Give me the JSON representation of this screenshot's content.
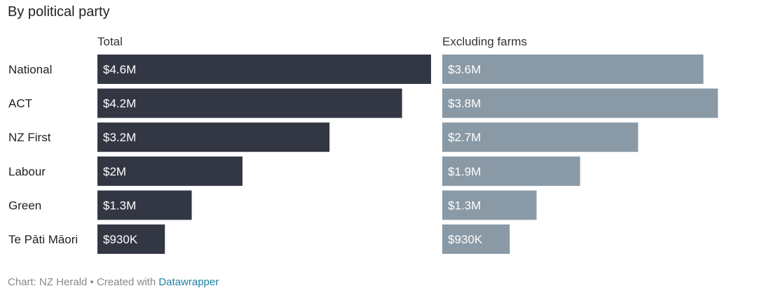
{
  "title": "By political party",
  "footer": {
    "source": "Chart: NZ Herald",
    "separator": " • ",
    "created": "Created with ",
    "link": "Datawrapper"
  },
  "colors": {
    "total": "#333743",
    "excluding": "#8999a5",
    "bar_label": "#ffffff"
  },
  "chart_data": {
    "type": "bar",
    "orientation": "horizontal",
    "categories": [
      "National",
      "ACT",
      "NZ First",
      "Labour",
      "Green",
      "Te Pāti Māori"
    ],
    "series": [
      {
        "name": "Total",
        "values": [
          4.6,
          4.2,
          3.2,
          2.0,
          1.3,
          0.93
        ],
        "labels": [
          "$4.6M",
          "$4.2M",
          "$3.2M",
          "$2M",
          "$1.3M",
          "$930K"
        ]
      },
      {
        "name": "Excluding farms",
        "values": [
          3.6,
          3.8,
          2.7,
          1.9,
          1.3,
          0.93
        ],
        "labels": [
          "$3.6M",
          "$3.8M",
          "$2.7M",
          "$1.9M",
          "$1.3M",
          "$930K"
        ]
      }
    ],
    "unit": "$M",
    "xlim": [
      0,
      4.6
    ]
  }
}
